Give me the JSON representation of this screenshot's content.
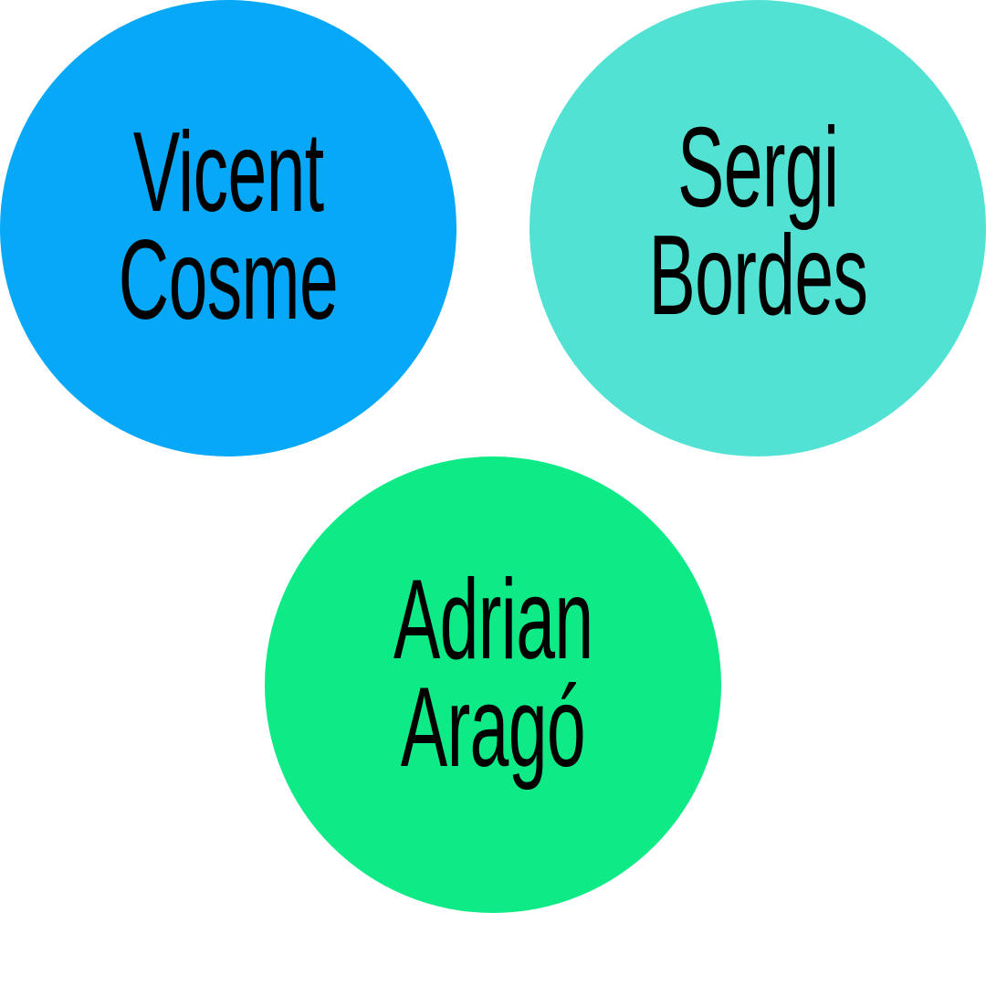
{
  "people": [
    {
      "first": "Vicent",
      "last": "Cosme",
      "color": "#06A8F7"
    },
    {
      "first": "Sergi",
      "last": "Bordes",
      "color": "#52E2D4"
    },
    {
      "first": "Adrian",
      "last": "Aragó",
      "color": "#0EEA86"
    }
  ]
}
